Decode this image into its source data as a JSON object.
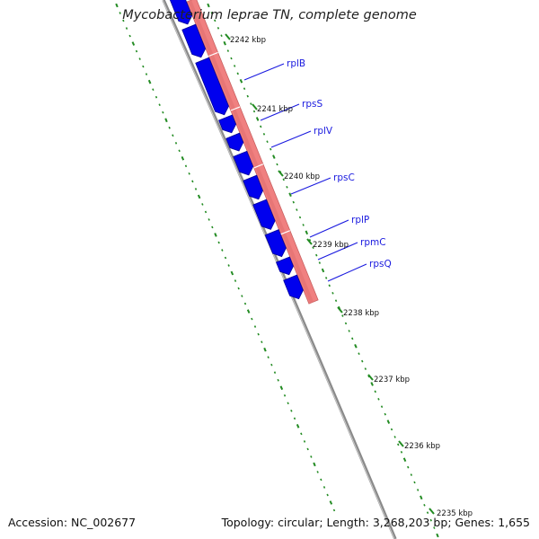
{
  "title": "Mycobacterium leprae TN, complete genome",
  "footer": {
    "accession_label": "Accession:",
    "accession": "NC_002677",
    "topology_label": "Topology:",
    "topology": "circular",
    "length_label": "Length:",
    "length": "3,268,203 bp",
    "genes_label": "Genes:",
    "genes": "1,655"
  },
  "colors": {
    "forward_strand": "#0000ee",
    "cds_feature": "#f08080",
    "gene_label": "#1a1adf",
    "ruler_dots": "#228b22",
    "backbone": "#808080"
  },
  "kbp_ticks": [
    {
      "kbp": 2242,
      "label": "2242 kbp"
    },
    {
      "kbp": 2241,
      "label": "2241 kbp"
    },
    {
      "kbp": 2240,
      "label": "2240 kbp"
    },
    {
      "kbp": 2239,
      "label": "2239 kbp"
    },
    {
      "kbp": 2238,
      "label": "2238 kbp"
    },
    {
      "kbp": 2237,
      "label": "2237 kbp"
    },
    {
      "kbp": 2236,
      "label": "2236 kbp"
    },
    {
      "kbp": 2235,
      "label": "2235 kbp"
    }
  ],
  "genes": [
    {
      "name": "rplB"
    },
    {
      "name": "rpsS"
    },
    {
      "name": "rplV"
    },
    {
      "name": "rpsC"
    },
    {
      "name": "rplP"
    },
    {
      "name": "rpmC"
    },
    {
      "name": "rpsQ"
    }
  ]
}
